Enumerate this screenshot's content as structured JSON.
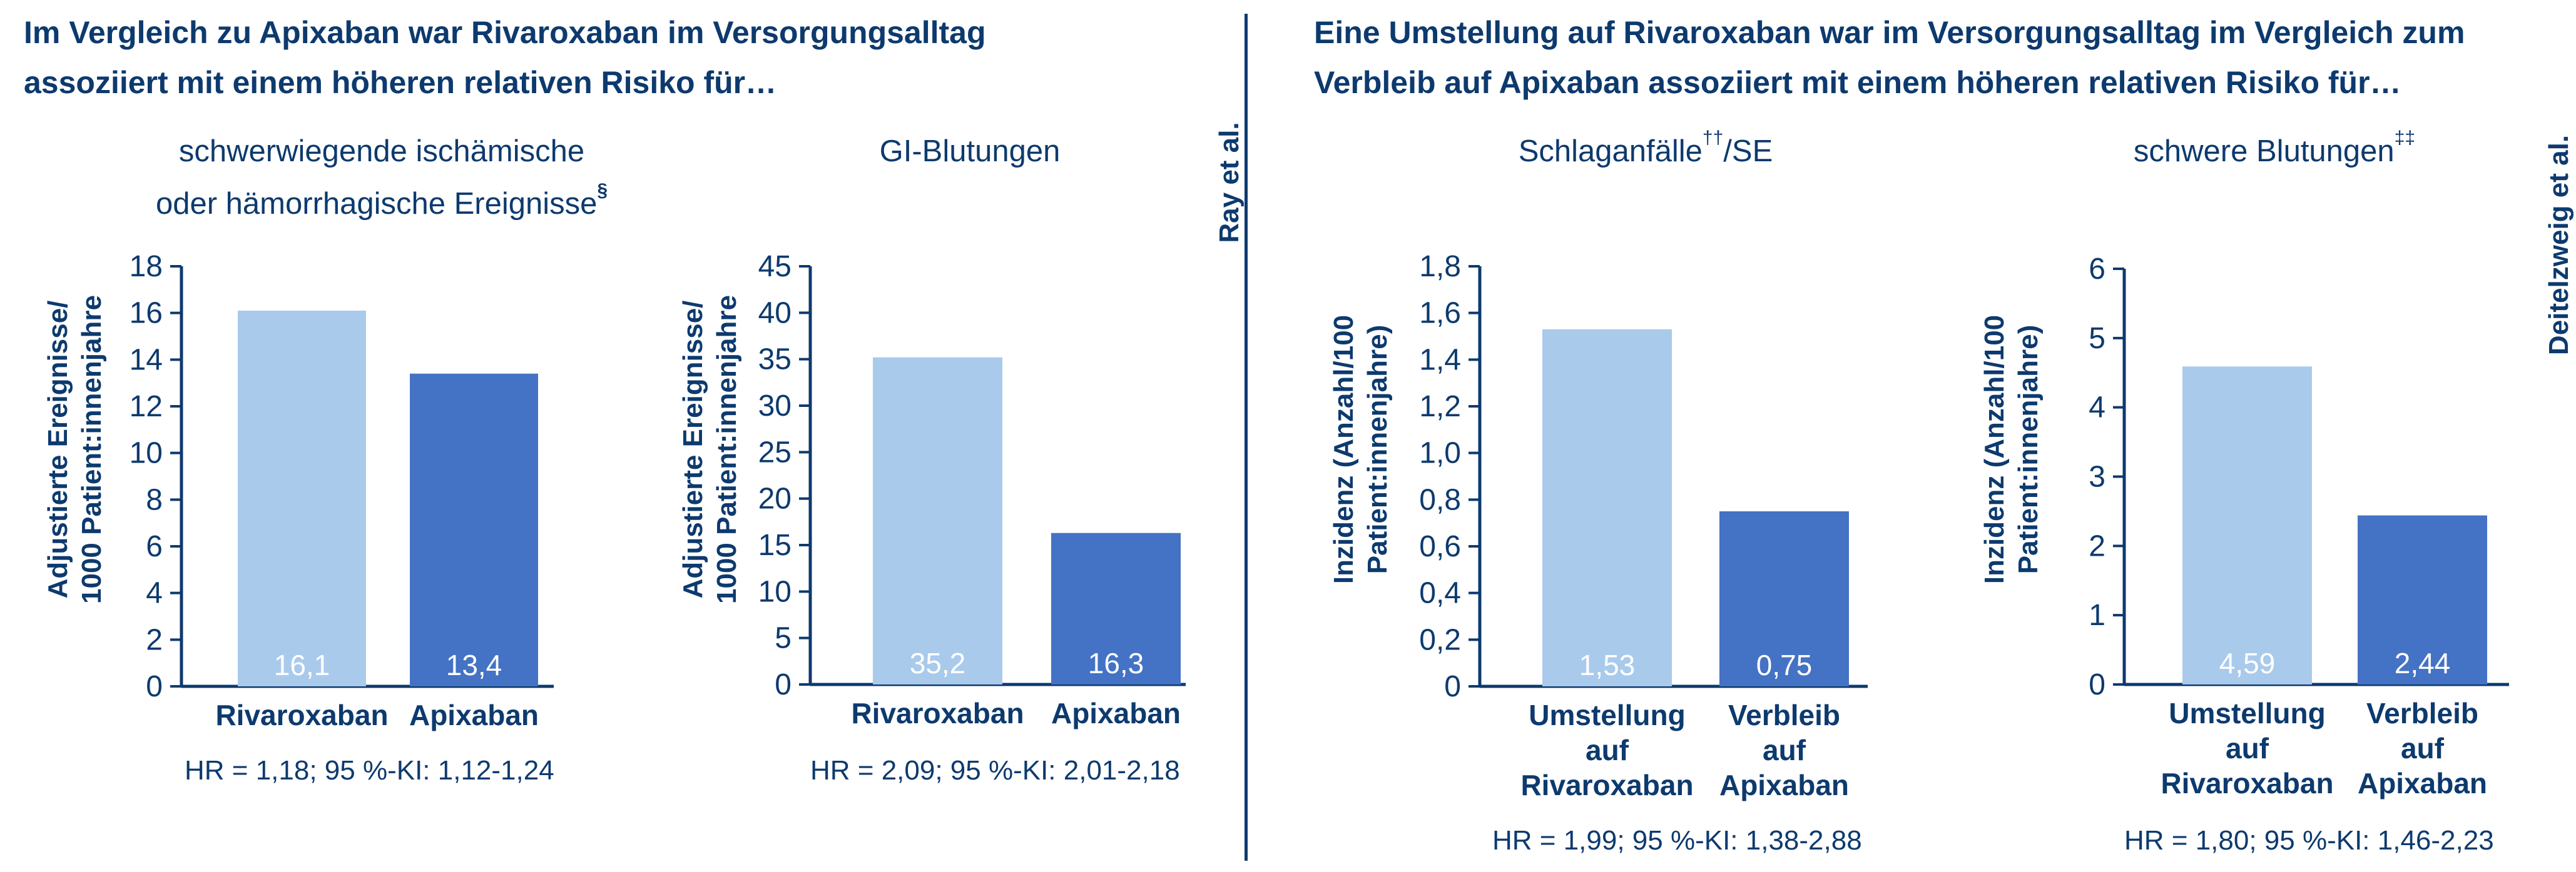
{
  "left_section": {
    "title_line1": "Im Vergleich zu Apixaban war Rivaroxaban im Versorgungsalltag",
    "title_line2": "assoziiert mit einem höheren relativen Risiko für…",
    "side_label": "Ray et al."
  },
  "right_section": {
    "title_line1": "Eine Umstellung auf Rivaroxaban war im Versorgungsalltag im Vergleich zum",
    "title_line2": "Verbleib auf Apixaban assoziiert mit einem höheren relativen Risiko für…",
    "side_label": "Deitelzweig et al."
  },
  "colors": {
    "light_bar": "#a9caeb",
    "dark_bar": "#4472c4",
    "text": "#0d3a6e",
    "value_label": "#ffffff"
  },
  "chart_data": [
    {
      "type": "bar",
      "title": "schwerwiegende ischämische oder hämorrhagische Ereignisse§",
      "title_line1": "schwerwiegende ischämische",
      "title_line2": "oder hämorrhagische Ereignisse",
      "title_sup": "§",
      "ylabel_line1": "Adjustierte Ereignisse/",
      "ylabel_line2": "1000 Patient:innenjahre",
      "categories": [
        [
          "Rivaroxaban"
        ],
        [
          "Apixaban"
        ]
      ],
      "values": [
        16.1,
        13.4
      ],
      "value_labels": [
        "16,1",
        "13,4"
      ],
      "ylim": [
        0,
        18
      ],
      "yticks": [
        "0",
        "2",
        "4",
        "6",
        "8",
        "10",
        "12",
        "14",
        "16",
        "18"
      ],
      "hr": "HR = 1,18; 95 %-KI: 1,12-1,24"
    },
    {
      "type": "bar",
      "title": "GI-Blutungen",
      "title_line1": "GI-Blutungen",
      "title_line2": "",
      "title_sup": "",
      "ylabel_line1": "Adjustierte Ereignisse/",
      "ylabel_line2": "1000 Patient:innenjahre",
      "categories": [
        [
          "Rivaroxaban"
        ],
        [
          "Apixaban"
        ]
      ],
      "values": [
        35.2,
        16.3
      ],
      "value_labels": [
        "35,2",
        "16,3"
      ],
      "ylim": [
        0,
        45
      ],
      "yticks": [
        "0",
        "5",
        "10",
        "15",
        "20",
        "25",
        "30",
        "35",
        "40",
        "45"
      ],
      "hr": "HR = 2,09; 95 %-KI: 2,01-2,18"
    },
    {
      "type": "bar",
      "title": "Schlaganfälle††/SE",
      "title_line1": "Schlaganfälle",
      "title_sup": "††",
      "title_after_sup": "/SE",
      "title_line2": "",
      "ylabel_line1": "Inzidenz (Anzahl/100",
      "ylabel_line2": "Patient:innenjahre)",
      "categories": [
        [
          "Umstellung",
          "auf",
          "Rivaroxaban"
        ],
        [
          "Verbleib",
          "auf",
          "Apixaban"
        ]
      ],
      "values": [
        1.53,
        0.75
      ],
      "value_labels": [
        "1,53",
        "0,75"
      ],
      "ylim": [
        0,
        1.8
      ],
      "yticks": [
        "0",
        "0,2",
        "0,4",
        "0,6",
        "0,8",
        "1,0",
        "1,2",
        "1,4",
        "1,6",
        "1,8"
      ],
      "hr": "HR = 1,99; 95 %-KI: 1,38-2,88"
    },
    {
      "type": "bar",
      "title": "schwere Blutungen‡‡",
      "title_line1": "schwere Blutungen",
      "title_sup": "‡‡",
      "title_line2": "",
      "ylabel_line1": "Inzidenz (Anzahl/100",
      "ylabel_line2": "Patient:innenjahre)",
      "categories": [
        [
          "Umstellung",
          "auf",
          "Rivaroxaban"
        ],
        [
          "Verbleib",
          "auf",
          "Apixaban"
        ]
      ],
      "values": [
        4.59,
        2.44
      ],
      "value_labels": [
        "4,59",
        "2,44"
      ],
      "ylim": [
        0,
        6
      ],
      "yticks": [
        "0",
        "1",
        "2",
        "3",
        "4",
        "5",
        "6"
      ],
      "hr": "HR = 1,80; 95 %-KI: 1,46-2,23"
    }
  ]
}
